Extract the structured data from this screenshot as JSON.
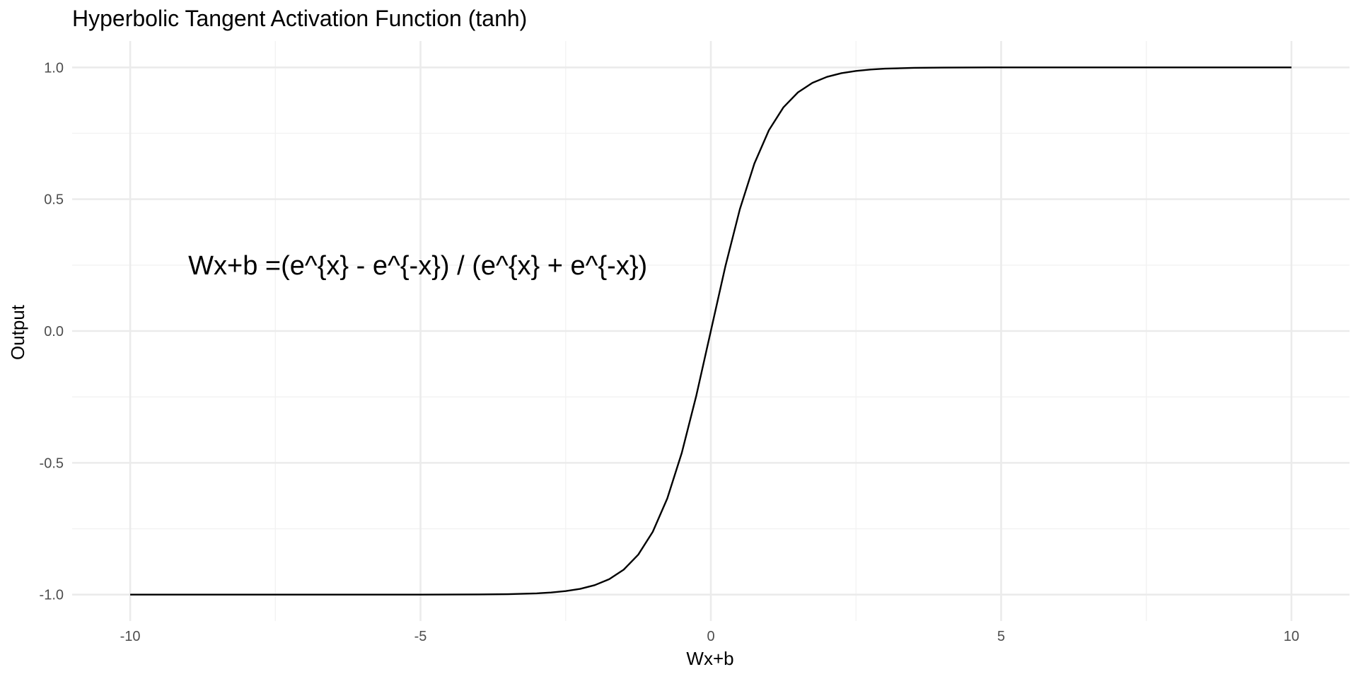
{
  "chart_data": {
    "type": "line",
    "title": "Hyperbolic Tangent Activation Function (tanh)",
    "xlabel": "Wx+b",
    "ylabel": "Output",
    "xlim": [
      -11,
      11
    ],
    "ylim": [
      -1.1,
      1.1
    ],
    "x_ticks": [
      -10,
      -5,
      0,
      5,
      10
    ],
    "x_tick_labels": [
      "-10",
      "-5",
      "0",
      "5",
      "10"
    ],
    "y_ticks": [
      -1.0,
      -0.5,
      0.0,
      0.5,
      1.0
    ],
    "y_tick_labels": [
      "-1.0",
      "-0.5",
      "0.0",
      "0.5",
      "1.0"
    ],
    "grid": true,
    "line_color": "#000000",
    "grid_major_color": "#ebebeb",
    "grid_minor_color": "#f2f2f2",
    "series": [
      {
        "x": [
          -10,
          -8,
          -6,
          -5,
          -4,
          -3.5,
          -3,
          -2.75,
          -2.5,
          -2.25,
          -2,
          -1.75,
          -1.5,
          -1.25,
          -1,
          -0.75,
          -0.5,
          -0.25,
          0,
          0.25,
          0.5,
          0.75,
          1,
          1.25,
          1.5,
          1.75,
          2,
          2.25,
          2.5,
          2.75,
          3,
          3.5,
          4,
          5,
          6,
          8,
          10
        ],
        "y": [
          -1.0,
          -1.0,
          -1.0,
          -0.9999,
          -0.9993,
          -0.9982,
          -0.9951,
          -0.9918,
          -0.9866,
          -0.978,
          -0.964,
          -0.9414,
          -0.9051,
          -0.8483,
          -0.7616,
          -0.6351,
          -0.4621,
          -0.2449,
          0.0,
          0.2449,
          0.4621,
          0.6351,
          0.7616,
          0.8483,
          0.9051,
          0.9414,
          0.964,
          0.978,
          0.9866,
          0.9918,
          0.9951,
          0.9982,
          0.9993,
          0.9999,
          1.0,
          1.0,
          1.0
        ]
      }
    ],
    "annotation": {
      "text": "Wx+b =(e^{x} - e^{-x}) / (e^{x} + e^{-x})",
      "x": -9,
      "y": 0.25
    }
  }
}
